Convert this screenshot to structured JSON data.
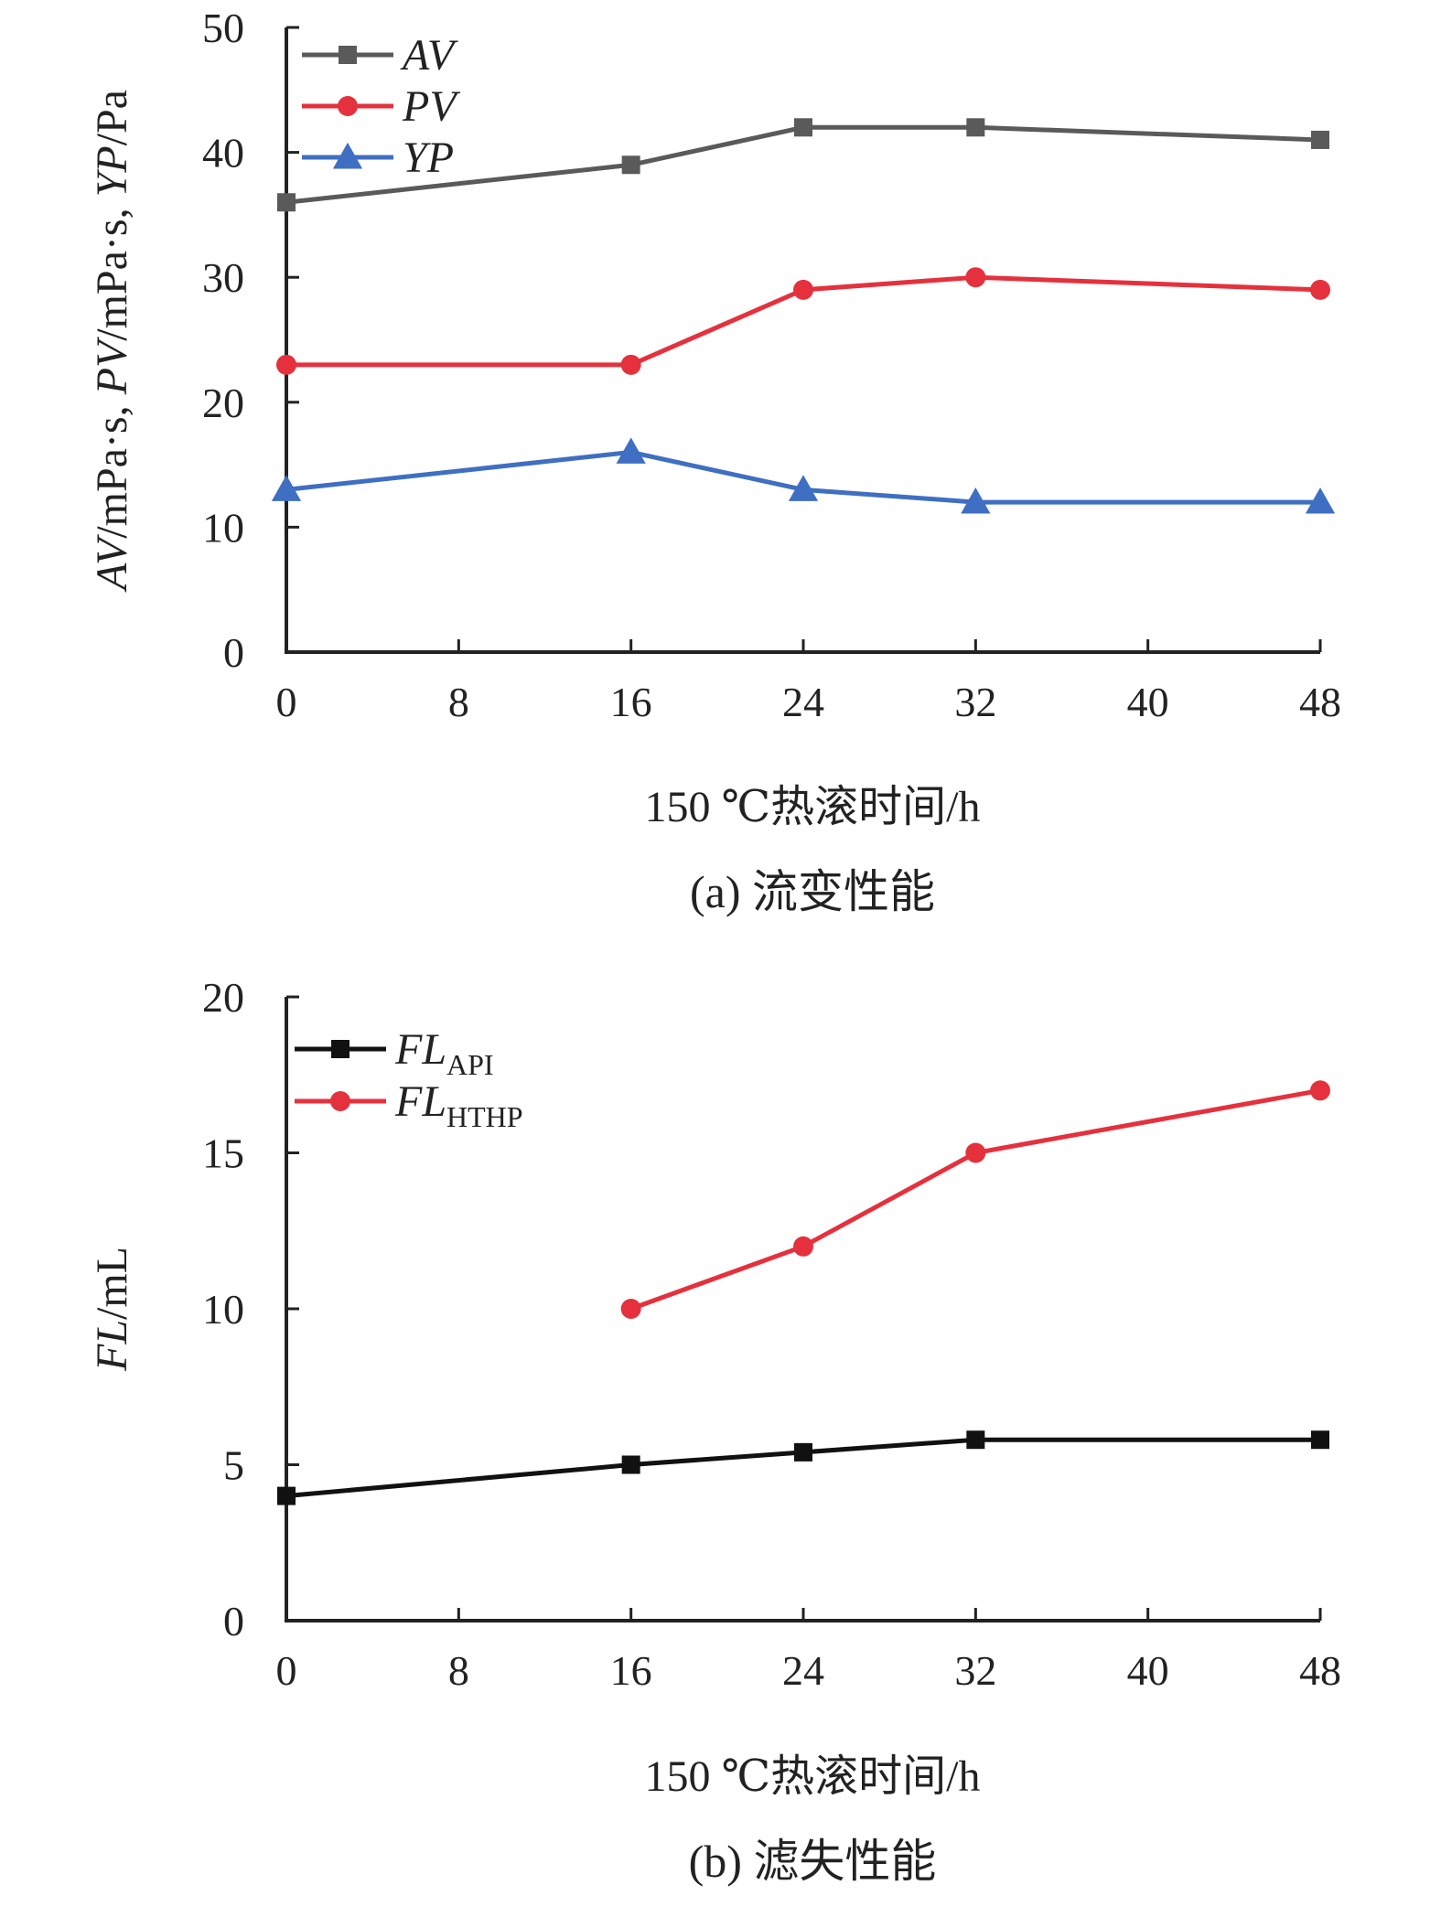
{
  "chart_data": [
    {
      "type": "line",
      "caption": "(a) 流变性能",
      "xlabel": "150 ℃热滚时间/h",
      "ylabel": {
        "parts": [
          {
            "text": "AV",
            "italic": true
          },
          {
            "text": "/mPa·s, ",
            "italic": false
          },
          {
            "text": "PV",
            "italic": true
          },
          {
            "text": "/mPa·s, ",
            "italic": false
          },
          {
            "text": "YP",
            "italic": true
          },
          {
            "text": "/Pa",
            "italic": false
          }
        ]
      },
      "xlim": [
        0,
        48
      ],
      "ylim": [
        0,
        50
      ],
      "xticks": [
        0,
        8,
        16,
        24,
        32,
        40,
        48
      ],
      "yticks": [
        0,
        10,
        20,
        30,
        40,
        50
      ],
      "legend_position": "top-left",
      "series": [
        {
          "name": "AV",
          "sub": "",
          "color": "#5a5a5a",
          "marker": "square",
          "x": [
            0,
            16,
            24,
            32,
            48
          ],
          "y": [
            36,
            39,
            42,
            42,
            41
          ]
        },
        {
          "name": "PV",
          "sub": "",
          "color": "#e5313d",
          "marker": "circle",
          "x": [
            0,
            16,
            24,
            32,
            48
          ],
          "y": [
            23,
            23,
            29,
            30,
            29
          ]
        },
        {
          "name": "YP",
          "sub": "",
          "color": "#3f6fc2",
          "marker": "triangle",
          "x": [
            0,
            16,
            24,
            32,
            48
          ],
          "y": [
            13,
            16,
            13,
            12,
            12
          ]
        }
      ]
    },
    {
      "type": "line",
      "caption": "(b) 滤失性能",
      "xlabel": "150 ℃热滚时间/h",
      "ylabel": {
        "parts": [
          {
            "text": "FL",
            "italic": true
          },
          {
            "text": "/mL",
            "italic": false
          }
        ]
      },
      "xlim": [
        0,
        48
      ],
      "ylim": [
        0,
        20
      ],
      "xticks": [
        0,
        8,
        16,
        24,
        32,
        40,
        48
      ],
      "yticks": [
        0,
        5,
        10,
        15,
        20
      ],
      "legend_position": "top-left",
      "series": [
        {
          "name": "FL",
          "sub": "API",
          "color": "#111111",
          "marker": "square",
          "x": [
            0,
            16,
            24,
            32,
            48
          ],
          "y": [
            4,
            5,
            5.4,
            5.8,
            5.8
          ]
        },
        {
          "name": "FL",
          "sub": "HTHP",
          "color": "#e5313d",
          "marker": "circle",
          "x": [
            16,
            24,
            32,
            48
          ],
          "y": [
            10,
            12,
            15,
            17
          ]
        }
      ]
    }
  ]
}
